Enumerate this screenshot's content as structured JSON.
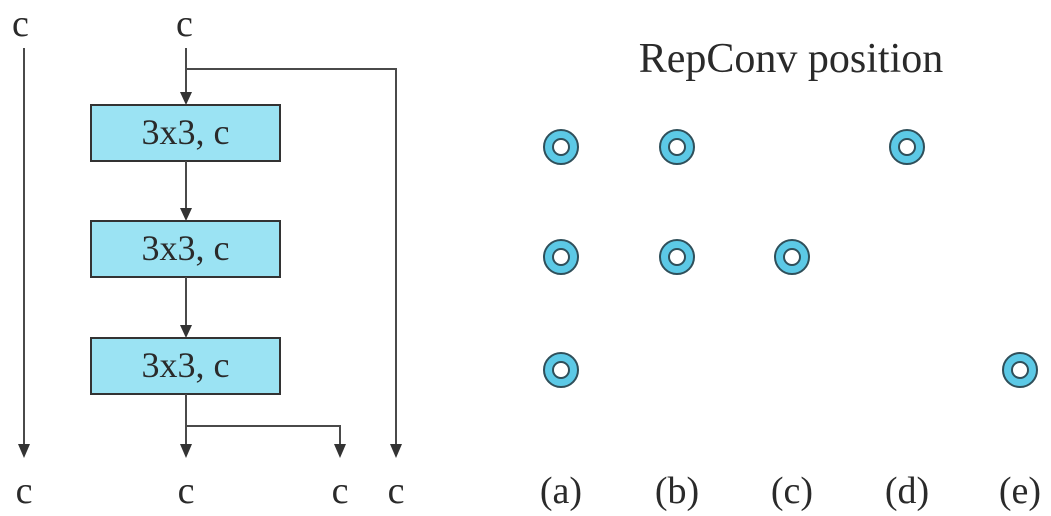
{
  "diagram": {
    "top_labels": [
      "c",
      "c"
    ],
    "bottom_labels": [
      "c",
      "c",
      "c",
      "c"
    ],
    "blocks": [
      {
        "label": "3x3, c"
      },
      {
        "label": "3x3, c"
      },
      {
        "label": "3x3, c"
      }
    ],
    "block_fill": "#9be3f3",
    "block_stroke": "#333333"
  },
  "repconv_grid": {
    "title": "RepConv position",
    "columns": [
      "(a)",
      "(b)",
      "(c)",
      "(d)",
      "(e)"
    ],
    "rows": 3,
    "marks": [
      [
        true,
        true,
        false,
        true,
        false
      ],
      [
        true,
        true,
        true,
        false,
        false
      ],
      [
        true,
        false,
        false,
        false,
        true
      ]
    ],
    "mark_outer_color": "#5cc9e6",
    "mark_ring_color": "#2f4f5a",
    "mark_inner_color": "#ffffff"
  }
}
